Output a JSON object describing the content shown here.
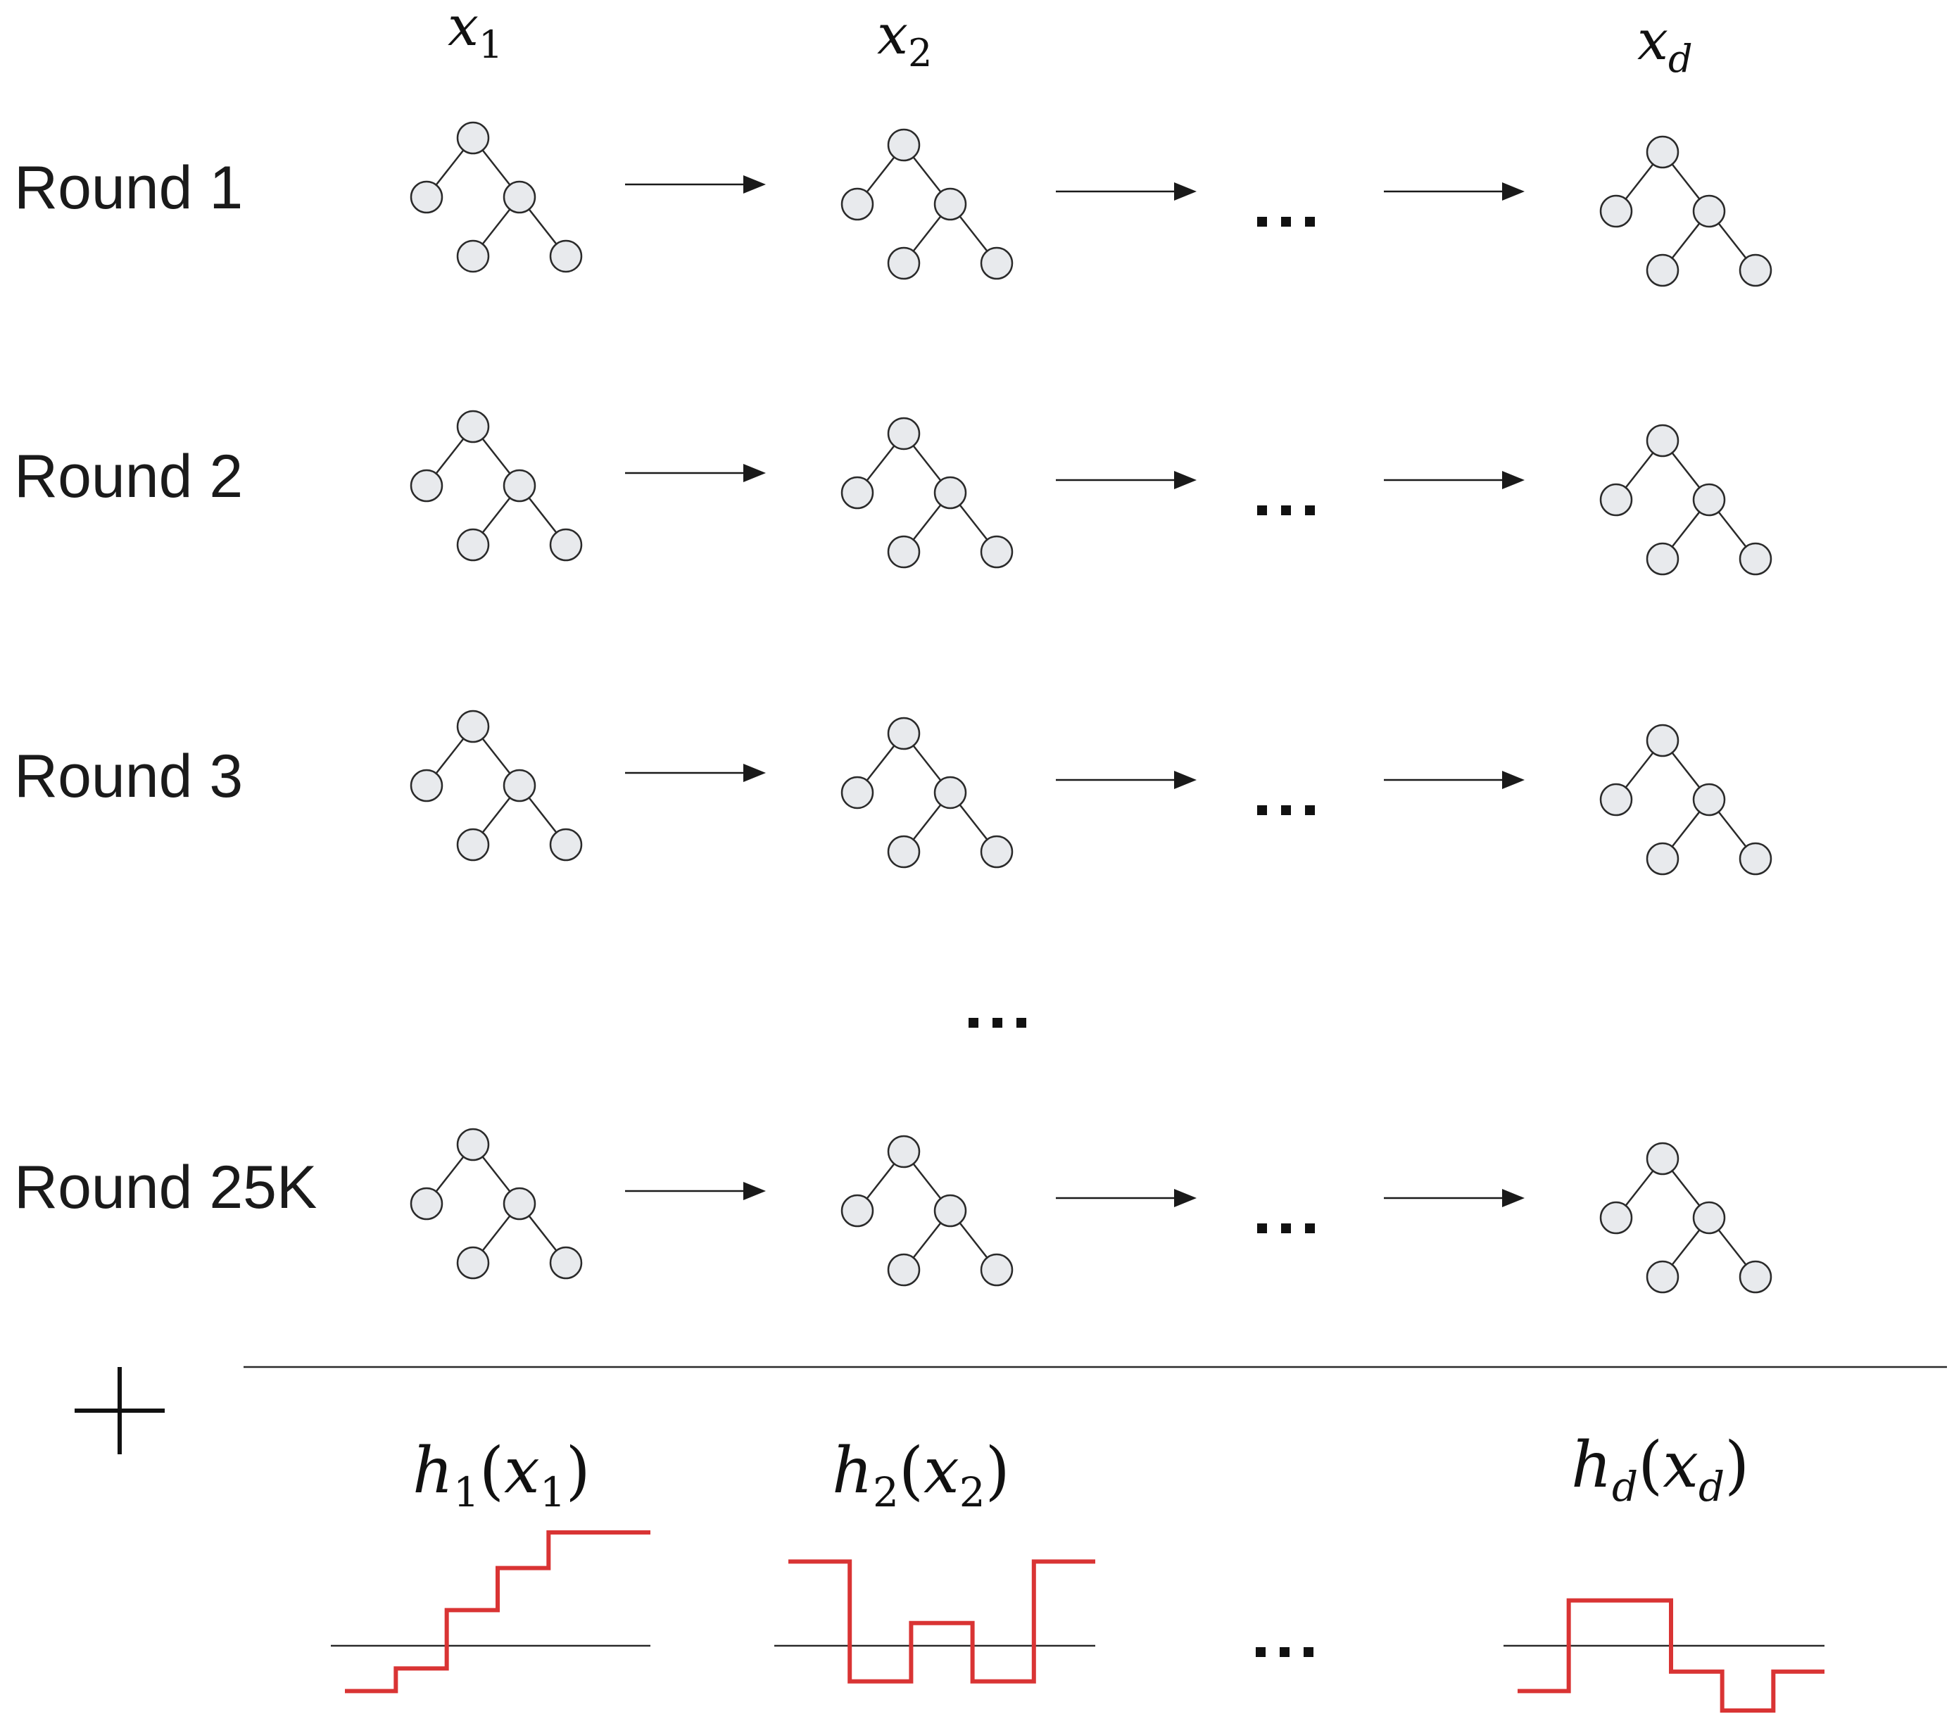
{
  "columns": [
    {
      "base": "x",
      "sub": "1"
    },
    {
      "base": "x",
      "sub": "2"
    },
    {
      "base": "x",
      "sub": "d"
    }
  ],
  "rounds": [
    {
      "label": "Round 1"
    },
    {
      "label": "Round 2"
    },
    {
      "label": "Round 3"
    },
    {
      "label": "Round 25K"
    }
  ],
  "ellipsis": "…",
  "combine_symbol": "+",
  "shape_functions": [
    {
      "fn": "h",
      "sub": "1",
      "arg_base": "x",
      "arg_sub": "1",
      "steps": [
        -0.7,
        -0.35,
        0.55,
        1.2,
        1.75,
        1.75
      ]
    },
    {
      "fn": "h",
      "sub": "2",
      "arg_base": "x",
      "arg_sub": "2",
      "steps": [
        1.3,
        -0.55,
        0.35,
        -0.55,
        1.3
      ]
    },
    {
      "fn": "h",
      "sub": "d",
      "arg_base": "x",
      "arg_sub": "d",
      "steps": [
        -0.7,
        0.7,
        0.7,
        -0.4,
        -1.0,
        -0.4
      ]
    }
  ]
}
